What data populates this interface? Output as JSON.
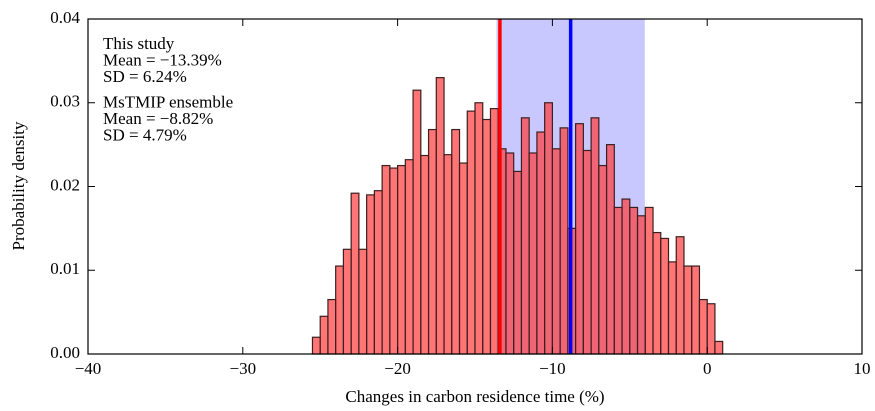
{
  "chart_data": {
    "type": "histogram",
    "xlabel": "Changes in carbon residence time (%)",
    "ylabel": "Probability density",
    "bins": [
      -25.5,
      -25,
      -24.5,
      -24,
      -23.5,
      -23,
      -22.5,
      -22,
      -21.5,
      -21,
      -20.5,
      -20,
      -19.5,
      -19,
      -18.5,
      -18,
      -17.5,
      -17,
      -16.5,
      -16,
      -15.5,
      -15,
      -14.5,
      -14,
      -13.5,
      -13,
      -12.5,
      -12,
      -11.5,
      -11,
      -10.5,
      -10,
      -9.5,
      -9,
      -8.5,
      -8,
      -7.5,
      -7,
      -6.5,
      -6,
      -5.5,
      -5,
      -4.5,
      -4,
      -3.5,
      -3,
      -2.5,
      -2,
      -1.5,
      -1,
      -0.5,
      0,
      0.5,
      1
    ],
    "values": [
      0.002,
      0.0045,
      0.0065,
      0.0105,
      0.0125,
      0.0192,
      0.0125,
      0.019,
      0.0195,
      0.0225,
      0.0222,
      0.0225,
      0.0232,
      0.0315,
      0.0237,
      0.0268,
      0.033,
      0.0238,
      0.0268,
      0.0228,
      0.029,
      0.03,
      0.028,
      0.0293,
      0.0245,
      0.024,
      0.0218,
      0.0282,
      0.024,
      0.0265,
      0.03,
      0.0245,
      0.027,
      0.015,
      0.0275,
      0.0243,
      0.0282,
      0.0225,
      0.025,
      0.0175,
      0.0185,
      0.0175,
      0.0165,
      0.0175,
      0.0145,
      0.0138,
      0.011,
      0.014,
      0.0105,
      0.0105,
      0.0065,
      0.006,
      0.0015
    ],
    "color": "#ff3a3a",
    "vlines": [
      {
        "value": -13.39,
        "color": "#ff0000"
      },
      {
        "value": -8.82,
        "color": "#0000ff"
      }
    ],
    "span": {
      "range": [
        -13.61,
        -4.03
      ],
      "color": "#c8c8ff"
    },
    "annotations": [
      {
        "lines": [
          "This study",
          "Mean = −13.39%",
          "SD = 6.24%"
        ],
        "color": "#ff0000"
      },
      {
        "lines": [
          "MsTMIP ensemble",
          "Mean = −8.82%",
          "SD = 4.79%"
        ],
        "color": "#0000ff"
      }
    ],
    "xlim": [
      -40,
      10
    ],
    "xticks": [
      {
        "value": -40,
        "label": "−40"
      },
      {
        "value": -30,
        "label": "−30"
      },
      {
        "value": -20,
        "label": "−20"
      },
      {
        "value": -10,
        "label": "−10"
      },
      0,
      10
    ],
    "ylim": [
      0,
      0.04
    ],
    "yticks": [
      {
        "value": 0,
        "label": "0.00"
      },
      {
        "value": 0.01,
        "label": "0.01"
      },
      {
        "value": 0.02,
        "label": "0.02"
      },
      {
        "value": 0.03,
        "label": "0.03"
      },
      {
        "value": 0.04,
        "label": "0.04"
      }
    ]
  }
}
